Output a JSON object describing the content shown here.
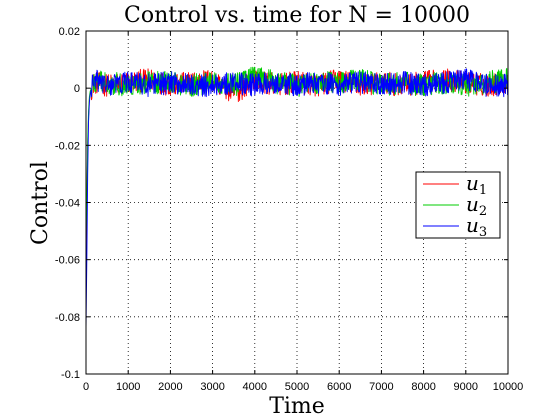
{
  "chart_data": {
    "type": "line",
    "title": "Control vs. time for N = 10000",
    "xlabel": "Time",
    "ylabel": "Control",
    "xlim": [
      0,
      10000
    ],
    "ylim": [
      -0.1,
      0.02
    ],
    "xticks": [
      0,
      1000,
      2000,
      3000,
      4000,
      5000,
      6000,
      7000,
      8000,
      9000,
      10000
    ],
    "xtick_labels": [
      "0",
      "1000",
      "2000",
      "3000",
      "4000",
      "5000",
      "6000",
      "7000",
      "8000",
      "9000",
      "10000"
    ],
    "yticks": [
      -0.1,
      -0.08,
      -0.06,
      -0.04,
      -0.02,
      0,
      0.02
    ],
    "ytick_labels": [
      "-0.1",
      "-0.08",
      "-0.06",
      "-0.04",
      "-0.02",
      "0",
      "0.02"
    ],
    "grid": true,
    "grid_style": "dotted",
    "legend_placement": "right",
    "series_note": "Each control starts negative at t=0 and settles into noisy oscillation around 0 within roughly the first 200 time units, with fluctuations of about ±0.005.",
    "series": [
      {
        "label": "u",
        "subscript": "1",
        "color": "#ff0000",
        "start_value": -0.06,
        "settled_mean": 0,
        "noise_amplitude": 0.004,
        "samples": [
          [
            0,
            -0.06
          ],
          [
            20,
            -0.045
          ],
          [
            40,
            -0.02
          ],
          [
            60,
            -0.01
          ],
          [
            80,
            -0.004
          ],
          [
            100,
            -0.002
          ],
          [
            150,
            0.001
          ],
          [
            200,
            0.002
          ],
          [
            500,
            0.001
          ],
          [
            1000,
            0.002
          ],
          [
            1500,
            0.003
          ],
          [
            2000,
            0.001
          ],
          [
            2500,
            0.002
          ],
          [
            3000,
            0.003
          ],
          [
            3500,
            -0.002
          ],
          [
            4000,
            0.003
          ],
          [
            4500,
            0.001
          ],
          [
            5000,
            0.002
          ],
          [
            5500,
            0.001
          ],
          [
            6000,
            0.003
          ],
          [
            6500,
            0.001
          ],
          [
            7000,
            0.002
          ],
          [
            7500,
            0.001
          ],
          [
            8000,
            0.002
          ],
          [
            8500,
            0.003
          ],
          [
            9000,
            0.002
          ],
          [
            9500,
            0.001
          ],
          [
            10000,
            0.002
          ]
        ]
      },
      {
        "label": "u",
        "subscript": "2",
        "color": "#00cc00",
        "start_value": -0.055,
        "settled_mean": 0,
        "noise_amplitude": 0.004,
        "samples": [
          [
            0,
            -0.055
          ],
          [
            20,
            -0.04
          ],
          [
            40,
            -0.018
          ],
          [
            60,
            -0.008
          ],
          [
            80,
            -0.003
          ],
          [
            100,
            -0.001
          ],
          [
            150,
            0.001
          ],
          [
            200,
            0.002
          ],
          [
            500,
            0.002
          ],
          [
            1000,
            0.001
          ],
          [
            1500,
            0.002
          ],
          [
            2000,
            0.002
          ],
          [
            2500,
            0.001
          ],
          [
            3000,
            0.002
          ],
          [
            3500,
            0.001
          ],
          [
            4000,
            0.004
          ],
          [
            4500,
            0.002
          ],
          [
            5000,
            0.001
          ],
          [
            5500,
            0.002
          ],
          [
            6000,
            0.002
          ],
          [
            6500,
            0.003
          ],
          [
            7000,
            0.001
          ],
          [
            7500,
            0.002
          ],
          [
            8000,
            0.001
          ],
          [
            8500,
            0.002
          ],
          [
            9000,
            0.001
          ],
          [
            9500,
            0.002
          ],
          [
            10000,
            0.003
          ]
        ]
      },
      {
        "label": "u",
        "subscript": "3",
        "color": "#0000ff",
        "start_value": -0.085,
        "settled_mean": 0,
        "noise_amplitude": 0.004,
        "samples": [
          [
            0,
            -0.085
          ],
          [
            20,
            -0.06
          ],
          [
            40,
            -0.03
          ],
          [
            60,
            -0.012
          ],
          [
            80,
            -0.005
          ],
          [
            100,
            -0.002
          ],
          [
            150,
            0.001
          ],
          [
            200,
            0.003
          ],
          [
            500,
            0.001
          ],
          [
            1000,
            0.002
          ],
          [
            1500,
            0.001
          ],
          [
            2000,
            0.002
          ],
          [
            2500,
            0.001
          ],
          [
            3000,
            0.001
          ],
          [
            3500,
            0.002
          ],
          [
            4000,
            0.001
          ],
          [
            4500,
            0.002
          ],
          [
            5000,
            0.001
          ],
          [
            5500,
            0.002
          ],
          [
            6000,
            0.001
          ],
          [
            6500,
            0.002
          ],
          [
            7000,
            0.001
          ],
          [
            7500,
            0.002
          ],
          [
            8000,
            0.001
          ],
          [
            8500,
            0.002
          ],
          [
            9000,
            0.003
          ],
          [
            9500,
            0.001
          ],
          [
            10000,
            0.001
          ]
        ]
      }
    ],
    "colors": {
      "background": "#ffffff",
      "axes": "#000000",
      "grid": "#000000"
    }
  }
}
